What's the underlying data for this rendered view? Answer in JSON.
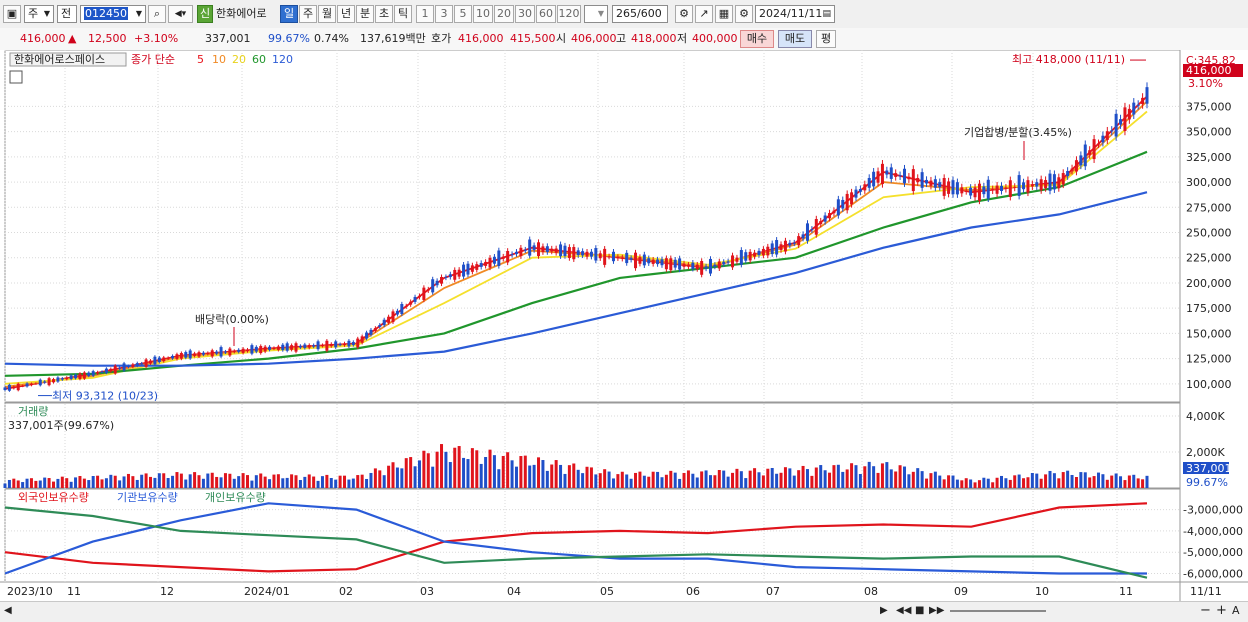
{
  "toolbar": {
    "type_label": "주",
    "prev_label": "전",
    "code": "012450",
    "stock_badge": "신",
    "stock_name": "한화에어로",
    "periods": [
      "일",
      "주",
      "월",
      "년",
      "분",
      "초",
      "틱"
    ],
    "active_period": "일",
    "nums": [
      "1",
      "3",
      "5",
      "10",
      "20",
      "30",
      "60",
      "120"
    ],
    "count": "265",
    "count_total": "/600",
    "date": "2024/11/11"
  },
  "quote": {
    "price": "416,000",
    "arrow": "▲",
    "change": "12,500",
    "change_pct": "+3.10%",
    "volume": "337,001",
    "vol_ratio": "99.67%",
    "turnover_pct": "0.74%",
    "amount": "137,619백만",
    "hoga_label": "호가",
    "ask": "416,000",
    "bid": "415,500",
    "open_label": "시",
    "open": "406,000",
    "high_label": "고",
    "high": "418,000",
    "low_label": "저",
    "low": "400,000",
    "buy_label": "매수",
    "sell_label": "매도",
    "flat_label": "평"
  },
  "price_pane": {
    "stock_title": "한화에어로스페이스",
    "ma_label": "종가 단순",
    "ma_periods": [
      "5",
      "10",
      "20",
      "60",
      "120"
    ],
    "ma_colors": [
      "#e8141c",
      "#f08a24",
      "#f5e02c",
      "#20962c",
      "#2b5bd6"
    ],
    "right_c": "C:345.82",
    "last_price_box": "416,000",
    "last_pct_box": "3.10%",
    "y_ticks": [
      "375,000",
      "350,000",
      "325,000",
      "300,000",
      "275,000",
      "250,000",
      "225,000",
      "200,000",
      "175,000",
      "150,000",
      "125,000",
      "100,000"
    ],
    "annot_high": "최고 418,000 (11/11)",
    "annot_low": "최저 93,312 (10/23)",
    "annot_dividend": "배당락(0.00%)",
    "annot_split": "기업합병/분할(3.45%)"
  },
  "volume_pane": {
    "title": "거래량",
    "value": "337,001주(99.67%)",
    "y_ticks": [
      "4,000K",
      "2,000K"
    ],
    "last_box": "337,001",
    "last_pct": "99.67%"
  },
  "holder_pane": {
    "legend": [
      "외국인보유수량",
      "기관보유수량",
      "개인보유수량"
    ],
    "colors": [
      "#e0141c",
      "#2a5bd8",
      "#2e8b57"
    ],
    "y_ticks": [
      "-3,000,000",
      "-4,000,000",
      "-5,000,000",
      "-6,000,000"
    ]
  },
  "x_labels": [
    "2023/10",
    "11",
    "12",
    "2024/01",
    "02",
    "03",
    "04",
    "05",
    "06",
    "07",
    "08",
    "09",
    "10",
    "11",
    "11/11"
  ],
  "chart_data": {
    "type": "line",
    "title": "한화에어로스페이스",
    "xlabel": "",
    "ylabel": "",
    "ylim": [
      82000,
      425000
    ],
    "grid": true,
    "legend_position": "top-left",
    "x": [
      "2023/10",
      "11",
      "12",
      "2024/01",
      "02",
      "03",
      "04",
      "05",
      "06",
      "07",
      "08",
      "09",
      "10",
      "11"
    ],
    "series": [
      {
        "name": "5",
        "values": [
          95000,
          110000,
          128000,
          135000,
          140000,
          205000,
          235000,
          225000,
          215000,
          240000,
          310000,
          290000,
          300000,
          385000
        ]
      },
      {
        "name": "10",
        "values": [
          97000,
          108000,
          127000,
          134000,
          139000,
          195000,
          232000,
          226000,
          216000,
          238000,
          300000,
          292000,
          298000,
          380000
        ]
      },
      {
        "name": "20",
        "values": [
          100000,
          106000,
          125000,
          133000,
          138000,
          180000,
          225000,
          228000,
          218000,
          234000,
          285000,
          295000,
          297000,
          370000
        ]
      },
      {
        "name": "60",
        "values": [
          108000,
          110000,
          118000,
          125000,
          135000,
          150000,
          180000,
          205000,
          215000,
          225000,
          255000,
          280000,
          295000,
          330000
        ]
      },
      {
        "name": "120",
        "values": [
          120000,
          118000,
          118000,
          120000,
          125000,
          132000,
          150000,
          170000,
          190000,
          210000,
          235000,
          255000,
          268000,
          290000
        ]
      }
    ],
    "volume": [
      500,
      700,
      900,
      800,
      700,
      2500,
      1800,
      900,
      1000,
      1200,
      1500,
      500,
      1000,
      700
    ],
    "holders": {
      "외국인보유수량": [
        -5000000,
        -5500000,
        -5700000,
        -5900000,
        -5800000,
        -4500000,
        -4100000,
        -4000000,
        -4100000,
        -3800000,
        -3700000,
        -3800000,
        -2900000,
        -2700000
      ],
      "기관보유수량": [
        -6000000,
        -4500000,
        -3500000,
        -2700000,
        -3000000,
        -4500000,
        -5000000,
        -5300000,
        -5300000,
        -5700000,
        -5800000,
        -5900000,
        -6000000,
        -6000000
      ],
      "개인보유수량": [
        -2900000,
        -3300000,
        -4000000,
        -4200000,
        -4400000,
        -5500000,
        -5300000,
        -5200000,
        -5100000,
        -5200000,
        -5300000,
        -5200000,
        -5200000,
        -6200000
      ]
    },
    "annotations": {
      "high": {
        "value": 418000,
        "date": "11/11"
      },
      "low": {
        "value": 93312,
        "date": "10/23"
      }
    }
  }
}
